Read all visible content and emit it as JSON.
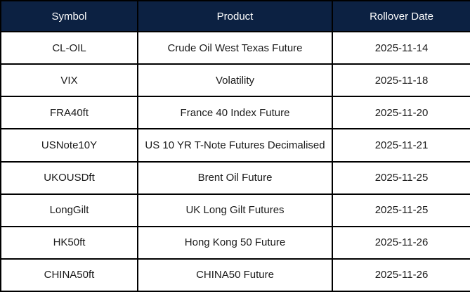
{
  "colors": {
    "header_background": "#0c2142",
    "header_text": "#ffffff",
    "grid_border": "#000000",
    "cell_text": "#1a1a1a",
    "row_background": "#ffffff"
  },
  "table": {
    "columns": [
      {
        "label": "Symbol"
      },
      {
        "label": "Product"
      },
      {
        "label": "Rollover Date"
      }
    ],
    "rows": [
      {
        "symbol": "CL-OIL",
        "product": "Crude Oil West Texas Future",
        "rollover_date": "2025-11-14"
      },
      {
        "symbol": "VIX",
        "product": "Volatility",
        "rollover_date": "2025-11-18"
      },
      {
        "symbol": "FRA40ft",
        "product": "France 40 Index Future",
        "rollover_date": "2025-11-20"
      },
      {
        "symbol": "USNote10Y",
        "product": "US 10 YR T-Note Futures Decimalised",
        "rollover_date": "2025-11-21"
      },
      {
        "symbol": "UKOUSDft",
        "product": "Brent Oil Future",
        "rollover_date": "2025-11-25"
      },
      {
        "symbol": "LongGilt",
        "product": "UK Long Gilt Futures",
        "rollover_date": "2025-11-25"
      },
      {
        "symbol": "HK50ft",
        "product": "Hong Kong 50 Future",
        "rollover_date": "2025-11-26"
      },
      {
        "symbol": "CHINA50ft",
        "product": "CHINA50 Future",
        "rollover_date": "2025-11-26"
      }
    ]
  }
}
